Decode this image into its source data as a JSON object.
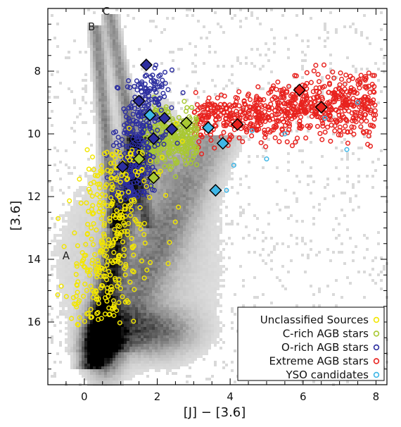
{
  "chart_data": {
    "type": "scatter",
    "xlabel": "[J] − [3.6]",
    "ylabel": "[3.6]",
    "xlim": [
      -1.0,
      8.3
    ],
    "ylim": [
      18.0,
      6.0
    ],
    "y_inverted": true,
    "x_ticks": [
      0,
      2,
      4,
      6,
      8
    ],
    "y_ticks": [
      8,
      10,
      12,
      14,
      16
    ],
    "background": "grayscale density (Hess diagram) of all sources",
    "sequence_labels": [
      {
        "text": "A",
        "x": -0.5,
        "y": 14.0
      },
      {
        "text": "B",
        "x": 0.2,
        "y": 6.7
      },
      {
        "text": "C",
        "x": 0.6,
        "y": 6.2
      }
    ],
    "legend": {
      "position": "bottom-right",
      "entries": [
        {
          "name": "Unclassified Sources",
          "color": "#f2e600"
        },
        {
          "name": "C-rich AGB stars",
          "color": "#a8c832"
        },
        {
          "name": "O-rich AGB stars",
          "color": "#2d2fa0"
        },
        {
          "name": "Extreme AGB stars",
          "color": "#e8221e"
        },
        {
          "name": "YSO candidates",
          "color": "#3fb6e6"
        }
      ]
    },
    "series": [
      {
        "name": "Unclassified Sources",
        "color": "#f2e600",
        "distribution": "along sequence A, x ~ -0.8 to 1.8, y ~ 10 to 16"
      },
      {
        "name": "C-rich AGB stars",
        "color": "#a8c832",
        "distribution": "x ~ 1.5 to 3.1, y ~ 9.2 to 11.3"
      },
      {
        "name": "O-rich AGB stars",
        "color": "#2d2fa0",
        "distribution": "x ~ 0.9 to 2.5, y ~ 8 to 12.3"
      },
      {
        "name": "Extreme AGB stars",
        "color": "#e8221e",
        "distribution": "x ~ 3.0 to 8.2, y ~ 7.5 to 10.5"
      },
      {
        "name": "YSO candidates",
        "color": "#3fb6e6",
        "distribution": "sparse, x ~ 3 to 7, y ~ 9.5 to 12"
      }
    ],
    "highlighted_diamonds": [
      {
        "x": 1.7,
        "y": 7.8,
        "color": "#2d2fa0"
      },
      {
        "x": 1.5,
        "y": 8.95,
        "color": "#2d2fa0"
      },
      {
        "x": 1.05,
        "y": 11.05,
        "color": "#2d2fa0"
      },
      {
        "x": 1.9,
        "y": 10.15,
        "color": "#2d2fa0"
      },
      {
        "x": 2.2,
        "y": 9.5,
        "color": "#2d2fa0"
      },
      {
        "x": 2.4,
        "y": 9.85,
        "color": "#2d2fa0"
      },
      {
        "x": 1.8,
        "y": 9.4,
        "color": "#3fb6e6"
      },
      {
        "x": 3.4,
        "y": 9.8,
        "color": "#3fb6e6"
      },
      {
        "x": 3.8,
        "y": 10.3,
        "color": "#3fb6e6"
      },
      {
        "x": 3.6,
        "y": 11.8,
        "color": "#3fb6e6"
      },
      {
        "x": 1.5,
        "y": 10.8,
        "color": "#a8c832"
      },
      {
        "x": 1.9,
        "y": 11.4,
        "color": "#a8c832"
      },
      {
        "x": 2.8,
        "y": 9.65,
        "color": "#a8c832"
      },
      {
        "x": 4.2,
        "y": 9.7,
        "color": "#e8221e"
      },
      {
        "x": 5.9,
        "y": 8.6,
        "color": "#e8221e"
      },
      {
        "x": 6.5,
        "y": 9.15,
        "color": "#e8221e"
      }
    ]
  }
}
